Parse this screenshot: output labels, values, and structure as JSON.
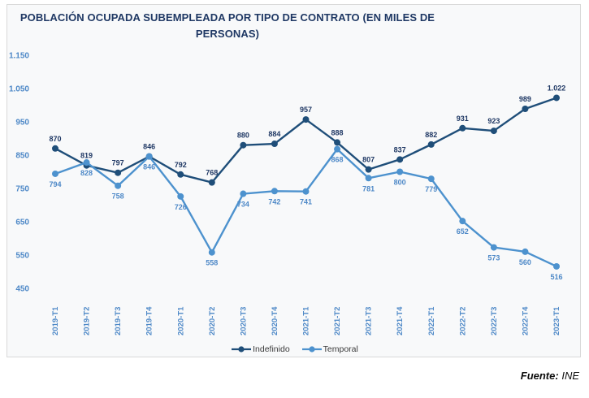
{
  "chart_data": {
    "type": "line",
    "title": "POBLACIÓN OCUPADA SUBEMPLEADA POR TIPO DE CONTRATO (EN MILES DE PERSONAS)",
    "categories": [
      "2019-T1",
      "2019-T2",
      "2019-T3",
      "2019-T4",
      "2020-T1",
      "2020-T2",
      "2020-T3",
      "2020-T4",
      "2021-T1",
      "2021-T2",
      "2021-T3",
      "2021-T4",
      "2022-T1",
      "2022-T2",
      "2022-T3",
      "2022-T4",
      "2023-T1"
    ],
    "series": [
      {
        "name": "Indefinido",
        "color": "#1f4e79",
        "label_color": "#1f3864",
        "label_position": "above",
        "values": [
          870,
          819,
          797,
          846,
          792,
          768,
          880,
          884,
          957,
          888,
          807,
          837,
          882,
          931,
          923,
          989,
          1022
        ]
      },
      {
        "name": "Temporal",
        "color": "#4d92ce",
        "label_color": "#4d88c7",
        "label_position": "below",
        "values": [
          794,
          828,
          758,
          846,
          726,
          558,
          734,
          742,
          741,
          868,
          781,
          800,
          779,
          652,
          573,
          560,
          516
        ]
      }
    ],
    "ylim": [
      450,
      1150
    ],
    "ytick_step": 100,
    "ytick_labels": [
      "450",
      "550",
      "650",
      "750",
      "850",
      "950",
      "1.050",
      "1.150"
    ],
    "grid": false,
    "legend_position": "bottom",
    "axis_label_color": "#4d88c7",
    "number_format": "thousands-dot"
  },
  "colors": {
    "title": "#1f3864",
    "card_background": "#f8f9fa",
    "card_border": "#d9d9d9",
    "legend_text": "#3a3a3a"
  },
  "footer": {
    "source_label": "Fuente:",
    "source_value": "INE"
  }
}
